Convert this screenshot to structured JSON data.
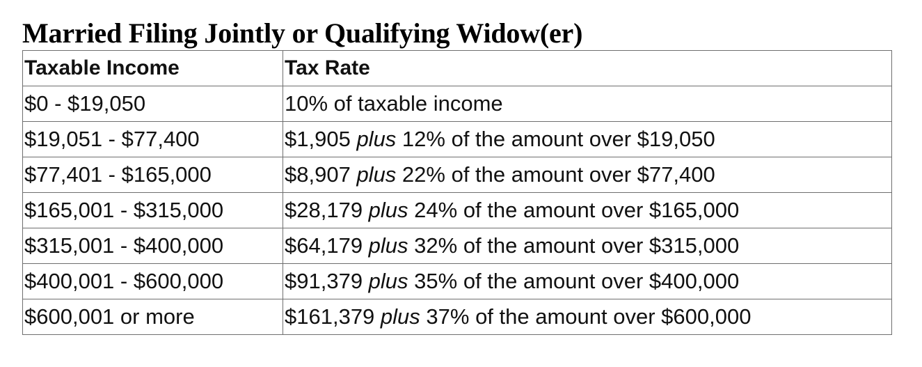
{
  "title": "Married Filing Jointly or Qualifying Widow(er)",
  "table": {
    "headers": [
      "Taxable Income",
      "Tax Rate"
    ],
    "rows": [
      {
        "income": "$0 - $19,050",
        "base": "",
        "plus": "",
        "rest": "10% of taxable income"
      },
      {
        "income": "$19,051 - $77,400",
        "base": "$1,905 ",
        "plus": "plus",
        "rest": " 12% of the amount over $19,050"
      },
      {
        "income": "$77,401 - $165,000",
        "base": "$8,907 ",
        "plus": "plus",
        "rest": " 22% of the amount over $77,400"
      },
      {
        "income": "$165,001 - $315,000",
        "base": "$28,179 ",
        "plus": "plus",
        "rest": " 24% of the amount over $165,000"
      },
      {
        "income": "$315,001 - $400,000",
        "base": "$64,179 ",
        "plus": "plus",
        "rest": " 32% of the amount over $315,000"
      },
      {
        "income": "$400,001 - $600,000",
        "base": "$91,379 ",
        "plus": "plus",
        "rest": " 35% of the amount over $400,000"
      },
      {
        "income": "$600,001 or more",
        "base": "$161,379 ",
        "plus": "plus",
        "rest": " 37% of the amount over $600,000"
      }
    ]
  }
}
